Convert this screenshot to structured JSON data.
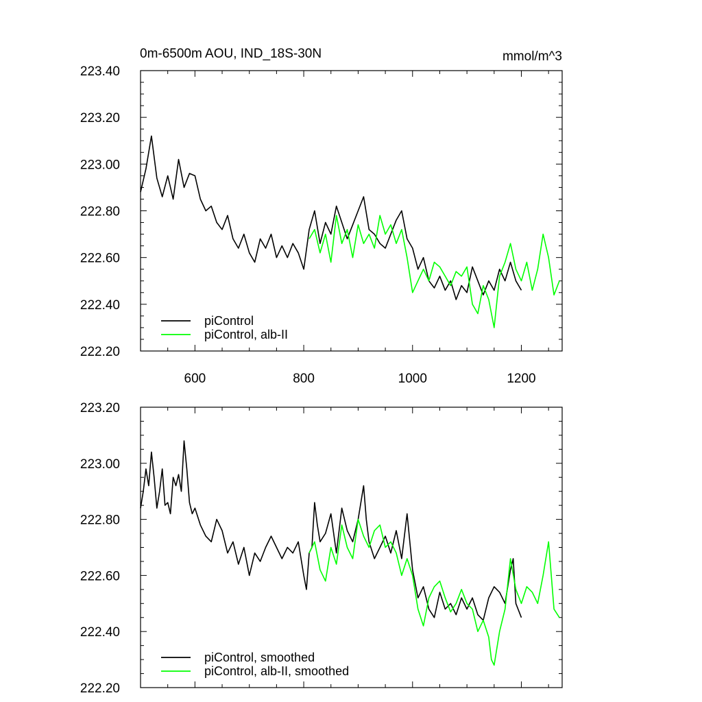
{
  "chart_data": [
    {
      "type": "line",
      "title": "0m-6500m AOU, IND_18S-30N",
      "units": "mmol/m^3",
      "xlim": [
        500,
        1275
      ],
      "ylim": [
        222.2,
        223.4
      ],
      "xticks": [
        600,
        800,
        1000,
        1200
      ],
      "xtick_labels": [
        "600",
        "800",
        "1000",
        "1200"
      ],
      "yticks": [
        222.2,
        222.4,
        222.6,
        222.8,
        223.0,
        223.2,
        223.4
      ],
      "ytick_labels": [
        "222.20",
        "222.40",
        "222.60",
        "222.80",
        "223.00",
        "223.20",
        "223.40"
      ],
      "legend_position": "bottom-left",
      "series": [
        {
          "name": "piControl",
          "color": "#000000",
          "x": [
            500,
            510,
            520,
            530,
            540,
            550,
            560,
            570,
            580,
            590,
            600,
            610,
            620,
            630,
            640,
            650,
            660,
            670,
            680,
            690,
            700,
            710,
            720,
            730,
            740,
            750,
            760,
            770,
            780,
            790,
            800,
            810,
            820,
            830,
            840,
            850,
            860,
            870,
            880,
            890,
            900,
            910,
            920,
            930,
            940,
            950,
            960,
            970,
            980,
            990,
            1000,
            1010,
            1020,
            1030,
            1040,
            1050,
            1060,
            1070,
            1080,
            1090,
            1100,
            1110,
            1120,
            1130,
            1140,
            1150,
            1160,
            1170,
            1180,
            1190,
            1200
          ],
          "values": [
            222.88,
            222.98,
            223.12,
            222.94,
            222.86,
            222.95,
            222.85,
            223.02,
            222.9,
            222.96,
            222.95,
            222.85,
            222.8,
            222.82,
            222.75,
            222.72,
            222.78,
            222.68,
            222.64,
            222.7,
            222.62,
            222.58,
            222.68,
            222.64,
            222.7,
            222.6,
            222.65,
            222.6,
            222.66,
            222.62,
            222.55,
            222.72,
            222.8,
            222.66,
            222.75,
            222.7,
            222.82,
            222.75,
            222.68,
            222.74,
            222.8,
            222.86,
            222.72,
            222.7,
            222.66,
            222.64,
            222.7,
            222.76,
            222.8,
            222.68,
            222.64,
            222.55,
            222.6,
            222.5,
            222.47,
            222.52,
            222.46,
            222.5,
            222.42,
            222.48,
            222.45,
            222.56,
            222.5,
            222.44,
            222.5,
            222.46,
            222.55,
            222.5,
            222.58,
            222.5,
            222.46
          ]
        },
        {
          "name": "piControl, alb-II",
          "color": "#00ff00",
          "x": [
            810,
            820,
            830,
            840,
            850,
            860,
            870,
            880,
            890,
            900,
            910,
            920,
            930,
            940,
            950,
            960,
            970,
            980,
            990,
            1000,
            1010,
            1020,
            1030,
            1040,
            1050,
            1060,
            1070,
            1080,
            1090,
            1100,
            1110,
            1120,
            1130,
            1140,
            1150,
            1160,
            1170,
            1180,
            1190,
            1200,
            1210,
            1220,
            1230,
            1240,
            1250,
            1260,
            1270
          ],
          "values": [
            222.68,
            222.72,
            222.62,
            222.7,
            222.58,
            222.78,
            222.66,
            222.72,
            222.6,
            222.74,
            222.66,
            222.7,
            222.64,
            222.78,
            222.7,
            222.74,
            222.66,
            222.72,
            222.6,
            222.45,
            222.5,
            222.55,
            222.5,
            222.58,
            222.56,
            222.52,
            222.48,
            222.54,
            222.52,
            222.56,
            222.4,
            222.36,
            222.48,
            222.42,
            222.3,
            222.52,
            222.58,
            222.66,
            222.55,
            222.5,
            222.58,
            222.46,
            222.55,
            222.7,
            222.6,
            222.44,
            222.5
          ]
        }
      ]
    },
    {
      "type": "line",
      "title": "",
      "xlim": [
        500,
        1275
      ],
      "ylim": [
        222.2,
        223.2
      ],
      "xticks": [
        600,
        800,
        1000,
        1200
      ],
      "yticks": [
        222.2,
        222.4,
        222.6,
        222.8,
        223.0,
        223.2
      ],
      "ytick_labels": [
        "222.20",
        "222.40",
        "222.60",
        "222.80",
        "223.00",
        "223.20"
      ],
      "legend_position": "bottom-left",
      "series": [
        {
          "name": "piControl, smoothed",
          "color": "#000000",
          "x": [
            500,
            505,
            510,
            515,
            520,
            525,
            530,
            535,
            540,
            545,
            550,
            555,
            560,
            565,
            570,
            575,
            580,
            585,
            590,
            595,
            600,
            610,
            620,
            630,
            640,
            650,
            660,
            670,
            680,
            690,
            700,
            710,
            720,
            730,
            740,
            750,
            760,
            770,
            780,
            790,
            800,
            805,
            810,
            815,
            820,
            825,
            830,
            840,
            850,
            860,
            870,
            880,
            890,
            900,
            910,
            915,
            920,
            930,
            940,
            950,
            960,
            970,
            980,
            990,
            1000,
            1010,
            1020,
            1030,
            1040,
            1050,
            1060,
            1070,
            1080,
            1090,
            1100,
            1110,
            1120,
            1130,
            1140,
            1150,
            1160,
            1170,
            1180,
            1185,
            1190,
            1200
          ],
          "values": [
            222.84,
            222.9,
            222.98,
            222.92,
            223.04,
            222.95,
            222.84,
            222.9,
            222.98,
            222.85,
            222.86,
            222.82,
            222.95,
            222.92,
            222.96,
            222.9,
            223.08,
            222.98,
            222.86,
            222.82,
            222.84,
            222.78,
            222.74,
            222.72,
            222.8,
            222.76,
            222.68,
            222.72,
            222.64,
            222.7,
            222.6,
            222.68,
            222.65,
            222.7,
            222.74,
            222.7,
            222.66,
            222.7,
            222.68,
            222.72,
            222.6,
            222.55,
            222.68,
            222.7,
            222.86,
            222.78,
            222.72,
            222.75,
            222.82,
            222.68,
            222.84,
            222.76,
            222.72,
            222.8,
            222.92,
            222.8,
            222.72,
            222.66,
            222.7,
            222.74,
            222.68,
            222.76,
            222.66,
            222.82,
            222.62,
            222.52,
            222.56,
            222.48,
            222.45,
            222.54,
            222.48,
            222.5,
            222.46,
            222.52,
            222.48,
            222.52,
            222.46,
            222.44,
            222.52,
            222.56,
            222.54,
            222.5,
            222.62,
            222.66,
            222.5,
            222.45
          ]
        },
        {
          "name": "piControl, alb-II, smoothed",
          "color": "#00ff00",
          "x": [
            810,
            820,
            830,
            840,
            850,
            860,
            870,
            880,
            890,
            900,
            910,
            920,
            930,
            940,
            950,
            960,
            970,
            980,
            990,
            1000,
            1010,
            1020,
            1030,
            1040,
            1050,
            1060,
            1070,
            1080,
            1090,
            1100,
            1110,
            1120,
            1130,
            1140,
            1145,
            1150,
            1160,
            1170,
            1180,
            1190,
            1200,
            1210,
            1220,
            1230,
            1240,
            1250,
            1260,
            1270
          ],
          "values": [
            222.68,
            222.72,
            222.62,
            222.58,
            222.7,
            222.64,
            222.78,
            222.7,
            222.66,
            222.8,
            222.74,
            222.7,
            222.76,
            222.78,
            222.7,
            222.72,
            222.68,
            222.6,
            222.66,
            222.6,
            222.48,
            222.42,
            222.52,
            222.56,
            222.58,
            222.52,
            222.47,
            222.5,
            222.55,
            222.5,
            222.48,
            222.4,
            222.44,
            222.38,
            222.3,
            222.28,
            222.4,
            222.48,
            222.66,
            222.55,
            222.5,
            222.56,
            222.54,
            222.5,
            222.6,
            222.72,
            222.48,
            222.45
          ]
        }
      ]
    }
  ]
}
